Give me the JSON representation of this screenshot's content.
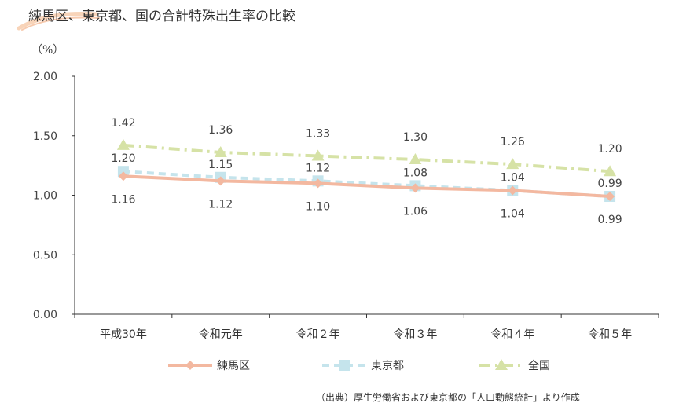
{
  "title": "練馬区、東京都、国の合計特殊出生率の比較",
  "source_note": "（出典）厚生労働省および東京都の「人口動態統計」より作成",
  "chart_data": {
    "type": "line",
    "unit_label": "（%）",
    "categories": [
      "平成30年",
      "令和元年",
      "令和２年",
      "令和３年",
      "令和４年",
      "令和５年"
    ],
    "ylim": [
      0,
      2
    ],
    "yticks": [
      "0.00",
      "0.50",
      "1.00",
      "1.50",
      "2.00"
    ],
    "ytick_values": [
      0,
      0.5,
      1,
      1.5,
      2
    ],
    "grid": false,
    "legend_position": "bottom",
    "series": [
      {
        "name": "練馬区",
        "values": [
          1.16,
          1.12,
          1.1,
          1.06,
          1.04,
          0.99
        ],
        "labels": [
          "1.16",
          "1.12",
          "1.10",
          "1.06",
          "1.04",
          "0.99"
        ],
        "color": "#f3b8a0",
        "marker": "diamond",
        "dash": "solid"
      },
      {
        "name": "東京都",
        "values": [
          1.2,
          1.15,
          1.12,
          1.08,
          1.04,
          0.99
        ],
        "labels": [
          "1.20",
          "1.15",
          "1.12",
          "1.08",
          "1.04",
          "0.99"
        ],
        "color": "#c5e4ec",
        "marker": "square",
        "dash": "dash"
      },
      {
        "name": "全国",
        "values": [
          1.42,
          1.36,
          1.33,
          1.3,
          1.26,
          1.2
        ],
        "labels": [
          "1.42",
          "1.36",
          "1.33",
          "1.30",
          "1.26",
          "1.20"
        ],
        "color": "#d6e2a6",
        "marker": "triangle",
        "dash": "dashdot"
      }
    ]
  }
}
